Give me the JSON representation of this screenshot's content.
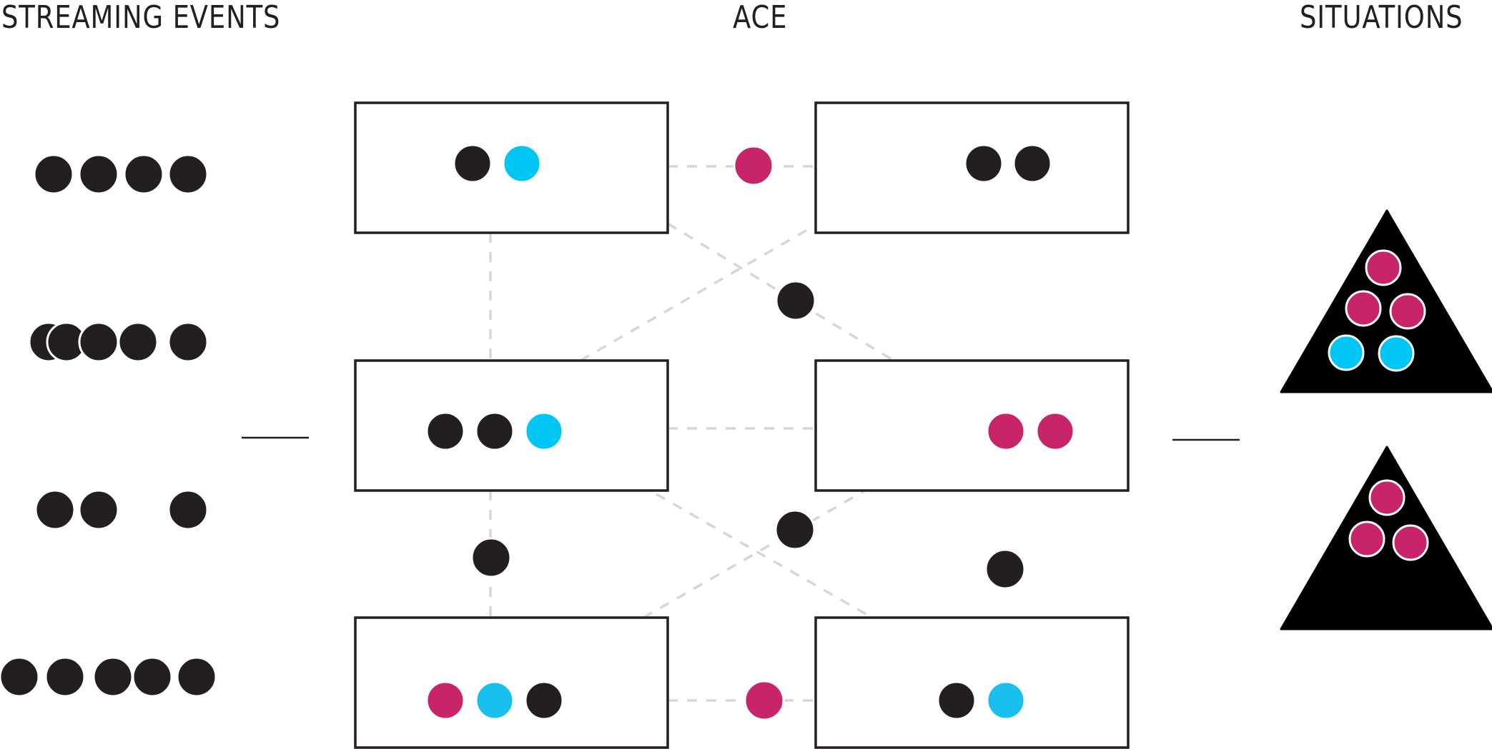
{
  "headings": {
    "streaming_events": "STREAMING EVENTS",
    "ace": "ACE",
    "situations": "SITUATIONS"
  },
  "colors": {
    "ink": "#231f20",
    "magenta": "#c8246a",
    "cyan": "#00c6f3",
    "light_cyan": "#19c0ee",
    "dashed_link": "#d6d6d6",
    "triangle": "#000000"
  },
  "icons": {
    "event_dot": "filled-circle",
    "situation": "filled-triangle"
  },
  "stream_rows": [
    {
      "events": [
        "black",
        "black",
        "black",
        "black"
      ]
    },
    {
      "events": [
        "black",
        "black",
        "black",
        "black",
        "black"
      ]
    },
    {
      "events": [
        "black",
        "black",
        "black"
      ]
    },
    {
      "events": [
        "black",
        "black",
        "black",
        "black",
        "black"
      ]
    }
  ],
  "ace_nodes": [
    {
      "id": "left-top",
      "events": [
        "black",
        "cyan"
      ]
    },
    {
      "id": "right-top",
      "events": [
        "black",
        "black"
      ]
    },
    {
      "id": "left-middle",
      "events": [
        "black",
        "black",
        "cyan"
      ]
    },
    {
      "id": "right-middle",
      "events": [
        "magenta",
        "magenta"
      ]
    },
    {
      "id": "left-bottom",
      "events": [
        "magenta",
        "light_cyan",
        "black"
      ]
    },
    {
      "id": "right-bottom",
      "events": [
        "black",
        "light_cyan"
      ]
    }
  ],
  "links": [
    {
      "from": "left-top",
      "to": "right-top",
      "event": "magenta"
    },
    {
      "from": "left-top",
      "to": "left-middle",
      "event": null
    },
    {
      "from": "left-top",
      "to": "right-middle",
      "event": "black"
    },
    {
      "from": "left-middle",
      "to": "right-top",
      "event": null
    },
    {
      "from": "left-middle",
      "to": "right-middle",
      "event": null
    },
    {
      "from": "left-middle",
      "to": "left-bottom",
      "event": "black"
    },
    {
      "from": "left-middle",
      "to": "right-bottom",
      "event": null
    },
    {
      "from": "left-bottom",
      "to": "right-middle",
      "event": "black"
    },
    {
      "from": "left-bottom",
      "to": "right-bottom",
      "event": "magenta"
    }
  ],
  "floating_event": "black",
  "situations": [
    {
      "events": [
        "magenta",
        "magenta",
        "magenta",
        "cyan",
        "cyan"
      ]
    },
    {
      "events": [
        "magenta",
        "magenta",
        "magenta"
      ]
    }
  ]
}
